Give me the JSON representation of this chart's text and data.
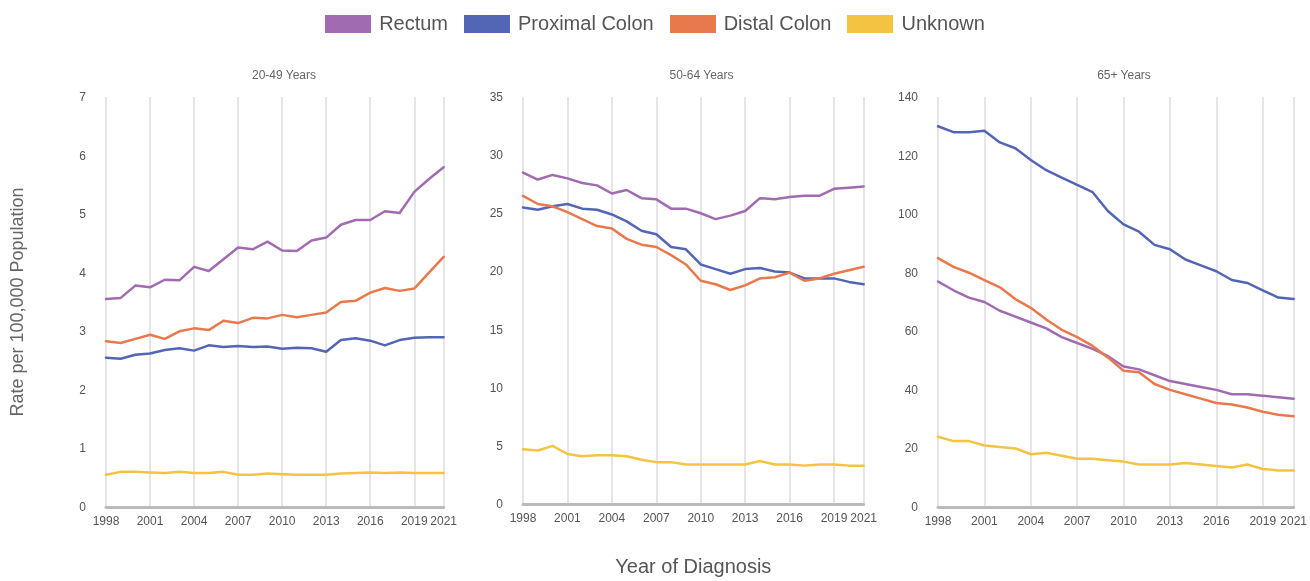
{
  "chart_data": [
    {
      "type": "line",
      "title": "20-49 Years",
      "ylabel": "Rate per 100,000 Population",
      "x": [
        1998,
        1999,
        2000,
        2001,
        2002,
        2003,
        2004,
        2005,
        2006,
        2007,
        2008,
        2009,
        2010,
        2011,
        2012,
        2013,
        2014,
        2015,
        2016,
        2017,
        2018,
        2019,
        2020,
        2021
      ],
      "xlim": [
        1998,
        2021
      ],
      "xticks": [
        1998,
        2001,
        2004,
        2007,
        2010,
        2013,
        2016,
        2019,
        2021
      ],
      "ylim": [
        0,
        7
      ],
      "yticks": [
        0,
        1,
        2,
        3,
        4,
        5,
        6,
        7
      ],
      "grid": "x",
      "legend": "top",
      "marker": "none",
      "series": [
        {
          "name": "Rectum",
          "color": "#a16bb2",
          "values": [
            3.55,
            3.57,
            3.78,
            3.75,
            3.88,
            3.87,
            4.1,
            4.03,
            4.23,
            4.43,
            4.4,
            4.53,
            4.38,
            4.37,
            4.55,
            4.6,
            4.82,
            4.9,
            4.9,
            5.05,
            5.02,
            5.38,
            5.6,
            5.8
          ]
        },
        {
          "name": "Proximal Colon",
          "color": "#5366b5",
          "values": [
            2.55,
            2.53,
            2.6,
            2.62,
            2.68,
            2.71,
            2.67,
            2.76,
            2.73,
            2.75,
            2.73,
            2.74,
            2.7,
            2.72,
            2.71,
            2.65,
            2.85,
            2.88,
            2.84,
            2.76,
            2.85,
            2.89,
            2.9,
            2.9
          ]
        },
        {
          "name": "Distal Colon",
          "color": "#e8794d",
          "values": [
            2.83,
            2.8,
            2.87,
            2.94,
            2.87,
            3.0,
            3.05,
            3.02,
            3.18,
            3.14,
            3.23,
            3.22,
            3.28,
            3.24,
            3.28,
            3.32,
            3.5,
            3.52,
            3.66,
            3.74,
            3.69,
            3.73,
            4.0,
            4.27
          ]
        },
        {
          "name": "Unknown",
          "color": "#f5c342",
          "values": [
            0.55,
            0.6,
            0.6,
            0.59,
            0.58,
            0.6,
            0.58,
            0.58,
            0.6,
            0.55,
            0.55,
            0.57,
            0.56,
            0.55,
            0.55,
            0.55,
            0.57,
            0.58,
            0.59,
            0.58,
            0.59,
            0.58,
            0.58,
            0.58
          ]
        }
      ]
    },
    {
      "type": "line",
      "title": "50-64 Years",
      "xlabel": "Year of Diagnosis",
      "x": [
        1998,
        1999,
        2000,
        2001,
        2002,
        2003,
        2004,
        2005,
        2006,
        2007,
        2008,
        2009,
        2010,
        2011,
        2012,
        2013,
        2014,
        2015,
        2016,
        2017,
        2018,
        2019,
        2020,
        2021
      ],
      "xlim": [
        1998,
        2021
      ],
      "xticks": [
        1998,
        2001,
        2004,
        2007,
        2010,
        2013,
        2016,
        2019,
        2021
      ],
      "ylim": [
        0,
        35
      ],
      "yticks": [
        0,
        5,
        10,
        15,
        20,
        25,
        30,
        35
      ],
      "grid": "x",
      "marker": "none",
      "series": [
        {
          "color": "#a16bb2",
          "values": [
            28.5,
            27.9,
            28.3,
            28.0,
            27.6,
            27.4,
            26.7,
            27.0,
            26.3,
            26.2,
            25.4,
            25.4,
            25.0,
            24.5,
            24.8,
            25.2,
            26.3,
            26.2,
            26.4,
            26.5,
            26.5,
            27.1,
            27.2,
            27.3
          ]
        },
        {
          "color": "#5366b5",
          "values": [
            25.5,
            25.3,
            25.6,
            25.8,
            25.4,
            25.3,
            24.9,
            24.3,
            23.5,
            23.2,
            22.1,
            21.9,
            20.6,
            20.2,
            19.8,
            20.2,
            20.3,
            20.0,
            19.9,
            19.4,
            19.4,
            19.4,
            19.1,
            18.9
          ]
        },
        {
          "color": "#e8794d",
          "values": [
            26.5,
            25.8,
            25.6,
            25.1,
            24.5,
            23.9,
            23.7,
            22.8,
            22.3,
            22.1,
            21.4,
            20.6,
            19.2,
            18.9,
            18.4,
            18.8,
            19.4,
            19.5,
            19.9,
            19.2,
            19.4,
            19.8,
            20.1,
            20.4
          ]
        },
        {
          "color": "#f5c342",
          "values": [
            4.7,
            4.6,
            5.0,
            4.3,
            4.1,
            4.2,
            4.2,
            4.1,
            3.8,
            3.6,
            3.6,
            3.4,
            3.4,
            3.4,
            3.4,
            3.4,
            3.7,
            3.4,
            3.4,
            3.3,
            3.4,
            3.4,
            3.3,
            3.3
          ]
        }
      ]
    },
    {
      "type": "line",
      "title": "65+ Years",
      "x": [
        1998,
        1999,
        2000,
        2001,
        2002,
        2003,
        2004,
        2005,
        2006,
        2007,
        2008,
        2009,
        2010,
        2011,
        2012,
        2013,
        2014,
        2015,
        2016,
        2017,
        2018,
        2019,
        2020,
        2021
      ],
      "xlim": [
        1998,
        2021
      ],
      "xticks": [
        1998,
        2001,
        2004,
        2007,
        2010,
        2013,
        2016,
        2019,
        2021
      ],
      "ylim": [
        0,
        140
      ],
      "yticks": [
        0,
        20,
        40,
        60,
        80,
        100,
        120,
        140
      ],
      "grid": "x",
      "marker": "none",
      "series": [
        {
          "color": "#a16bb2",
          "values": [
            77,
            74,
            71.5,
            70,
            67,
            65,
            63,
            61,
            58,
            56,
            54,
            51.5,
            48,
            47,
            45,
            43,
            42,
            41,
            40,
            38.5,
            38.5,
            38,
            37.5,
            37
          ]
        },
        {
          "color": "#5366b5",
          "values": [
            130,
            128,
            128,
            128.5,
            124.5,
            122.5,
            118.5,
            115,
            112.5,
            110,
            107.5,
            101,
            96.5,
            94,
            89.5,
            88,
            84.5,
            82.5,
            80.5,
            77.5,
            76.5,
            74,
            71.5,
            71
          ]
        },
        {
          "color": "#e8794d",
          "values": [
            85,
            82,
            80,
            77.5,
            75,
            71,
            68,
            64,
            60.5,
            58,
            55,
            51,
            46.5,
            46,
            42,
            40,
            38.5,
            37,
            35.5,
            35,
            34,
            32.5,
            31.5,
            31
          ]
        },
        {
          "color": "#f5c342",
          "values": [
            24,
            22.5,
            22.5,
            21,
            20.5,
            20,
            18,
            18.5,
            17.5,
            16.5,
            16.5,
            16,
            15.5,
            14.5,
            14.5,
            14.5,
            15,
            14.5,
            14,
            13.5,
            14.5,
            13,
            12.5,
            12.5
          ]
        }
      ]
    }
  ]
}
